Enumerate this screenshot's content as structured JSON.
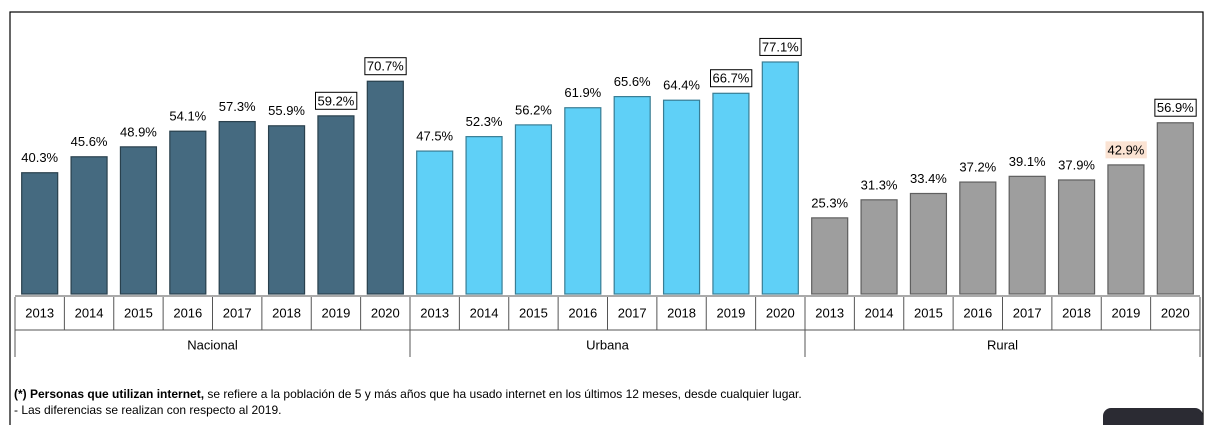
{
  "chart_data": {
    "type": "bar",
    "categories": [
      "2013",
      "2014",
      "2015",
      "2016",
      "2017",
      "2018",
      "2019",
      "2020"
    ],
    "series": [
      {
        "name": "Nacional",
        "color": "#456a80",
        "values": [
          40.3,
          45.6,
          48.9,
          54.1,
          57.3,
          55.9,
          59.2,
          70.7
        ],
        "value_labels": [
          "40.3%",
          "45.6%",
          "48.9%",
          "54.1%",
          "57.3%",
          "55.9%",
          "59.2%",
          "70.7%"
        ]
      },
      {
        "name": "Urbana",
        "color": "#5fd0f7",
        "values": [
          47.5,
          52.3,
          56.2,
          61.9,
          65.6,
          64.4,
          66.7,
          77.1
        ],
        "value_labels": [
          "47.5%",
          "52.3%",
          "56.2%",
          "61.9%",
          "65.6%",
          "64.4%",
          "66.7%",
          "77.1%"
        ]
      },
      {
        "name": "Rural",
        "color": "#9e9e9e",
        "values": [
          25.3,
          31.3,
          33.4,
          37.2,
          39.1,
          37.9,
          42.9,
          56.9
        ],
        "value_labels": [
          "25.3%",
          "31.3%",
          "33.4%",
          "37.2%",
          "39.1%",
          "37.9%",
          "42.9%",
          "56.9%"
        ]
      }
    ],
    "footnote": {
      "bold": "(*) Personas que utilizan internet,",
      "text": " se refiere a la población de 5 y más años que ha usado internet en los últimos 12 meses, desde cualquier lugar.",
      "note": "- Las diferencias se realizan con respecto al 2019."
    }
  }
}
